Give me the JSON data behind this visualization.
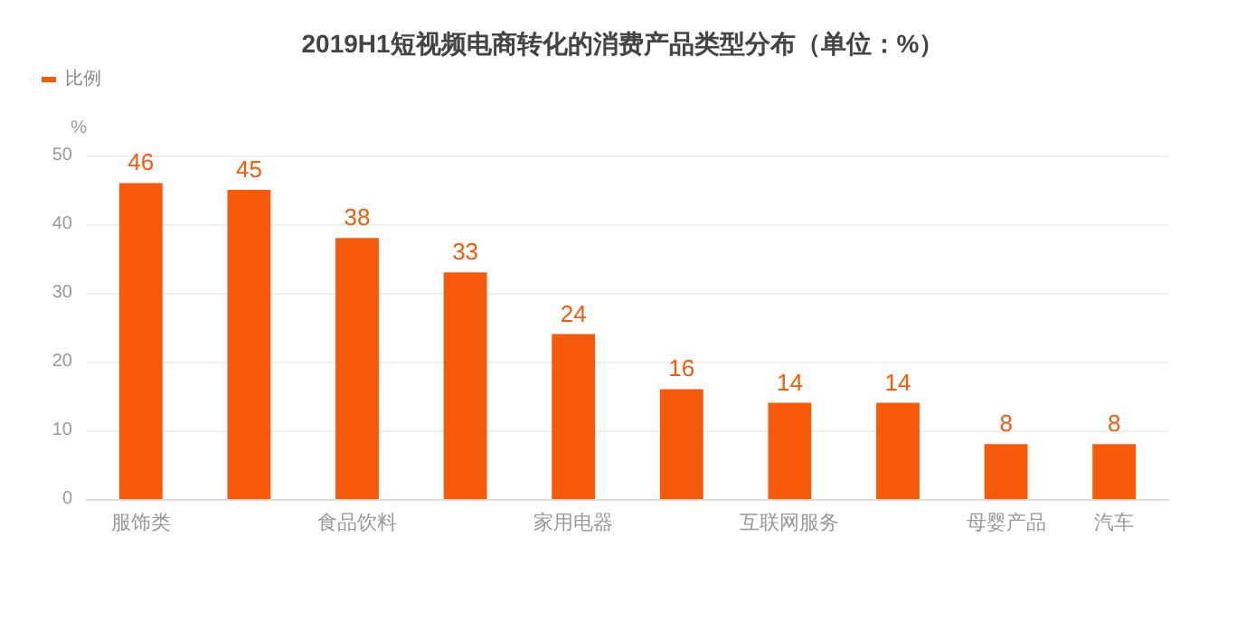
{
  "chart_data": {
    "type": "bar",
    "title": "2019H1短视频电商转化的消费产品类型分布（单位：%）",
    "ylabel": "%",
    "categories": [
      "服饰类",
      null,
      "食品饮料",
      null,
      "家用电器",
      null,
      "互联网服务",
      null,
      "母婴产品",
      "汽车"
    ],
    "series": [
      {
        "name": "比例",
        "color": "#f85a0c",
        "values": [
          46,
          45,
          38,
          33,
          24,
          16,
          14,
          14,
          8,
          8
        ]
      }
    ],
    "ylim": [
      0,
      50
    ],
    "yticks": [
      0,
      10,
      20,
      30,
      40,
      50
    ],
    "grid": "y",
    "legend": "top left",
    "data_labels": true
  }
}
